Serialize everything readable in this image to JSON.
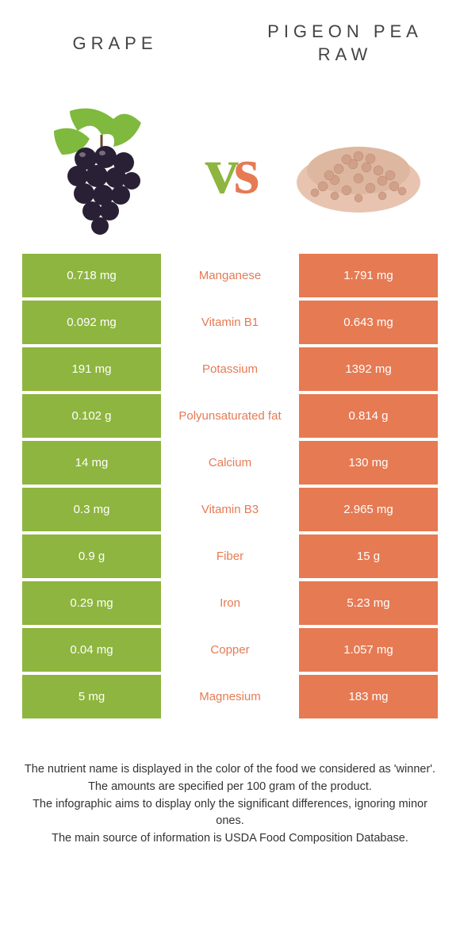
{
  "header": {
    "left": "GRAPE",
    "right_l1": "PIGEON PEA",
    "right_l2": "RAW"
  },
  "colors": {
    "left": "#8eb53f",
    "right": "#e67a53",
    "mid_default": "#e67a53"
  },
  "rows": [
    {
      "left": "0.718 mg",
      "mid": "Manganese",
      "mid_color": "#e67a53",
      "right": "1.791 mg"
    },
    {
      "left": "0.092 mg",
      "mid": "Vitamin B1",
      "mid_color": "#e67a53",
      "right": "0.643 mg"
    },
    {
      "left": "191 mg",
      "mid": "Potassium",
      "mid_color": "#e67a53",
      "right": "1392 mg"
    },
    {
      "left": "0.102 g",
      "mid": "Polyunsaturated fat",
      "mid_color": "#e67a53",
      "right": "0.814 g"
    },
    {
      "left": "14 mg",
      "mid": "Calcium",
      "mid_color": "#e67a53",
      "right": "130 mg"
    },
    {
      "left": "0.3 mg",
      "mid": "Vitamin B3",
      "mid_color": "#e67a53",
      "right": "2.965 mg"
    },
    {
      "left": "0.9 g",
      "mid": "Fiber",
      "mid_color": "#e67a53",
      "right": "15 g"
    },
    {
      "left": "0.29 mg",
      "mid": "Iron",
      "mid_color": "#e67a53",
      "right": "5.23 mg"
    },
    {
      "left": "0.04 mg",
      "mid": "Copper",
      "mid_color": "#e67a53",
      "right": "1.057 mg"
    },
    {
      "left": "5 mg",
      "mid": "Magnesium",
      "mid_color": "#e67a53",
      "right": "183 mg"
    }
  ],
  "footer": {
    "l1": "The nutrient name is displayed in the color of the food we considered as 'winner'.",
    "l2": "The amounts are specified per 100 gram of the product.",
    "l3": "The infographic aims to display only the significant differences, ignoring minor ones.",
    "l4": "The main source of information is USDA Food Composition Database."
  }
}
